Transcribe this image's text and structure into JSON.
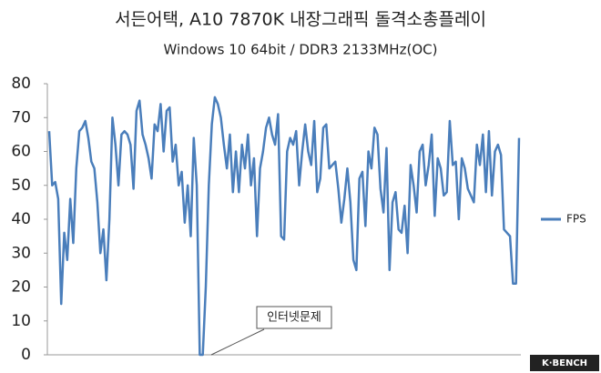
{
  "chart_data": {
    "type": "line",
    "title": "서든어택, A10 7870K 내장그래픽 돌격소총플레이",
    "subtitle": "Windows 10 64bit / DDR3 2133MHz(OC)",
    "series": [
      {
        "name": "FPS",
        "color": "#4a7ebb",
        "values": [
          66,
          50,
          51,
          46,
          15,
          36,
          28,
          46,
          33,
          55,
          66,
          67,
          69,
          64,
          57,
          55,
          45,
          30,
          37,
          22,
          40,
          70,
          62,
          50,
          65,
          66,
          65,
          62,
          49,
          72,
          75,
          65,
          62,
          58,
          52,
          68,
          66,
          74,
          60,
          72,
          73,
          57,
          62,
          50,
          54,
          39,
          50,
          35,
          64,
          50,
          0,
          0,
          20,
          50,
          68,
          76,
          74,
          70,
          62,
          55,
          65,
          48,
          60,
          48,
          62,
          55,
          65,
          50,
          58,
          35,
          55,
          60,
          67,
          70,
          65,
          62,
          71,
          35,
          34,
          60,
          64,
          62,
          66,
          50,
          60,
          68,
          60,
          56,
          69,
          48,
          52,
          67,
          68,
          55,
          56,
          57,
          49,
          39,
          46,
          55,
          45,
          28,
          25,
          52,
          54,
          38,
          60,
          55,
          67,
          65,
          49,
          42,
          61,
          25,
          45,
          48,
          37,
          36,
          44,
          30,
          56,
          50,
          42,
          60,
          62,
          50,
          56,
          65,
          41,
          58,
          55,
          47,
          48,
          69,
          56,
          57,
          40,
          58,
          55,
          49,
          47,
          45,
          62,
          56,
          65,
          48,
          66,
          47,
          60,
          62,
          59,
          37,
          36,
          35,
          21,
          21,
          64
        ]
      }
    ],
    "ylim": [
      0,
      80
    ],
    "yticks": [
      0,
      10,
      20,
      30,
      40,
      50,
      60,
      70,
      80
    ],
    "legend": "right",
    "annotations": [
      {
        "text": "인터넷문제"
      }
    ],
    "watermark": "K·BENCH"
  }
}
